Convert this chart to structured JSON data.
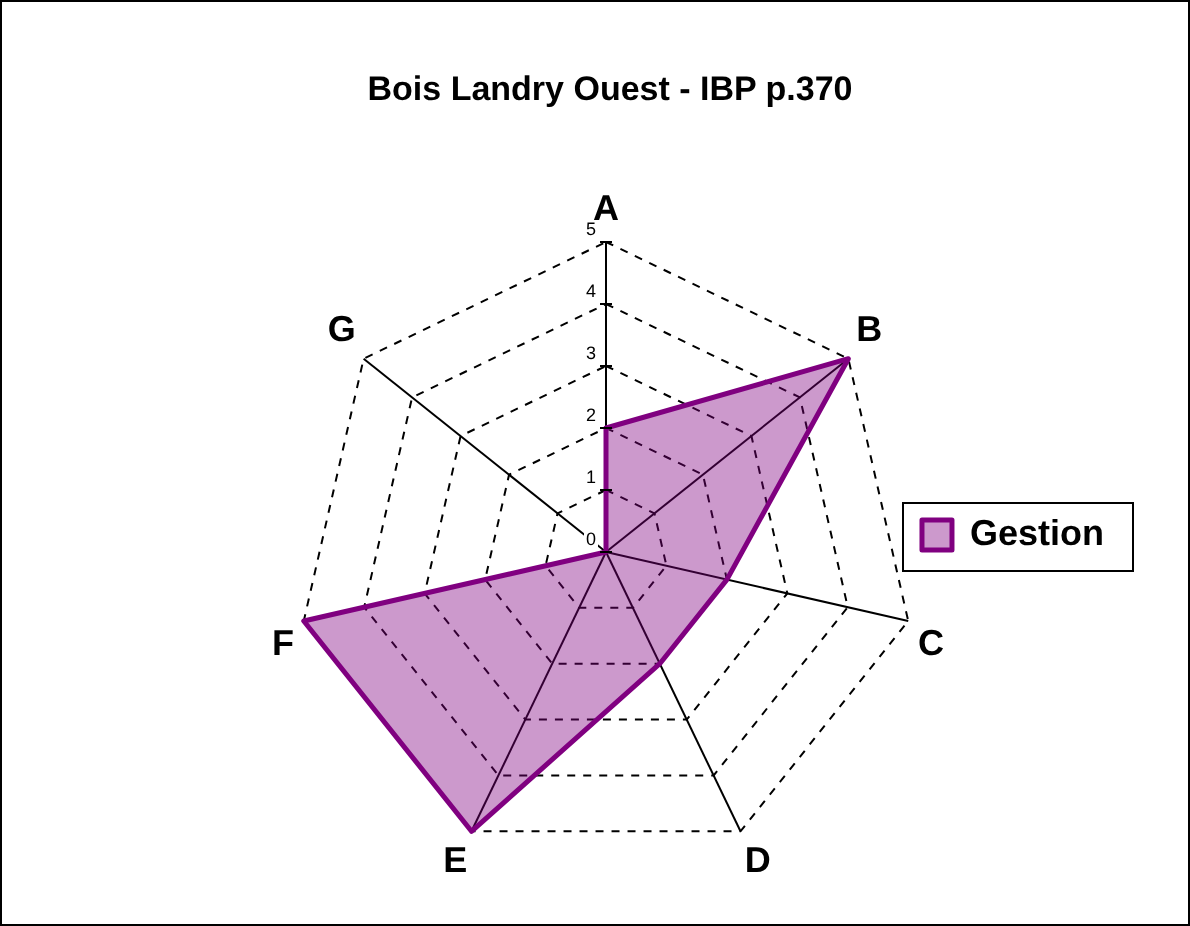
{
  "chart_data": {
    "type": "radar",
    "title": "Bois Landry Ouest - IBP p.370",
    "categories": [
      "A",
      "B",
      "C",
      "D",
      "E",
      "F",
      "G"
    ],
    "series": [
      {
        "name": "Gestion",
        "color": "#800080",
        "values": [
          2,
          5,
          2,
          2,
          5,
          5,
          0
        ]
      }
    ],
    "ylim": [
      0,
      5
    ],
    "yticks": [
      0,
      1,
      2,
      3,
      4,
      5
    ],
    "grid": true,
    "legend": "right",
    "marker": "none"
  }
}
